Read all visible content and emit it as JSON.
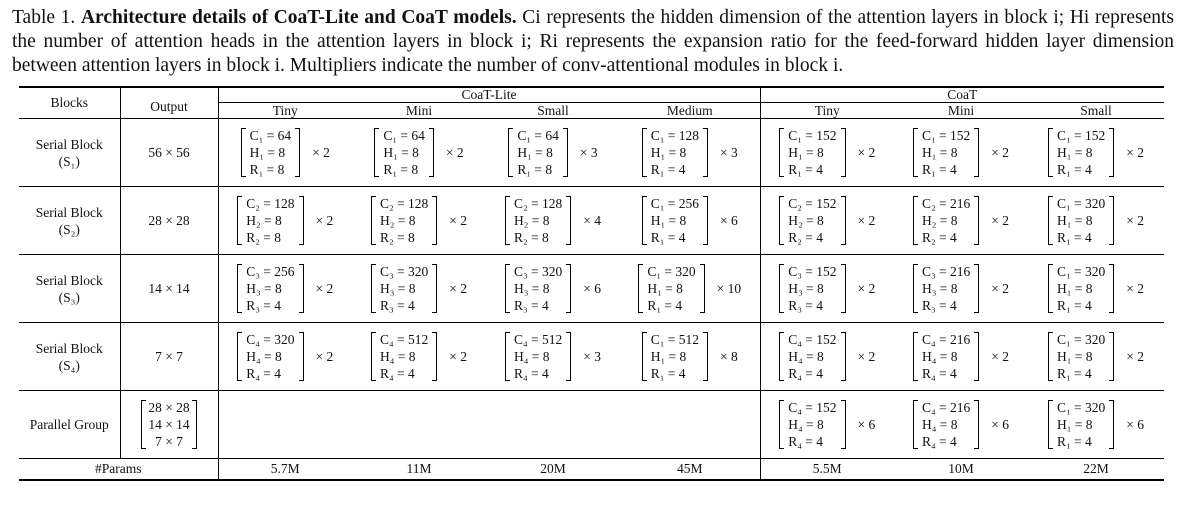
{
  "caption": {
    "label": "Table 1.",
    "bold": "Architecture details of CoaT-Lite and CoaT models.",
    "text": "Ci represents the hidden dimension of the attention layers in block i; Hi represents the number of attention heads in the attention layers in block i; Ri represents the expansion ratio for the feed-forward hidden layer dimension between attention layers in block i. Multipliers indicate the number of conv-attentional modules in block i."
  },
  "headers": {
    "blocks": "Blocks",
    "output": "Output",
    "group_lite": "CoaT-Lite",
    "group_coat": "CoaT",
    "variants": [
      "Tiny",
      "Mini",
      "Small",
      "Medium",
      "Tiny",
      "Mini",
      "Small"
    ]
  },
  "rows": [
    {
      "name": "Serial Block",
      "sub": "(S₁)",
      "output": "56 × 56",
      "cells": [
        {
          "c": "C₁ = 64",
          "h": "H₁ = 8",
          "r": "R₁ = 8",
          "m": "× 2"
        },
        {
          "c": "C₁ = 64",
          "h": "H₁ = 8",
          "r": "R₁ = 8",
          "m": "× 2"
        },
        {
          "c": "C₁ = 64",
          "h": "H₁ = 8",
          "r": "R₁ = 8",
          "m": "× 3"
        },
        {
          "c": "C₁ = 128",
          "h": "H₁ = 8",
          "r": "R₁ = 4",
          "m": "× 3"
        },
        {
          "c": "C₁ = 152",
          "h": "H₁ = 8",
          "r": "R₁ = 4",
          "m": "× 2"
        },
        {
          "c": "C₁ = 152",
          "h": "H₁ = 8",
          "r": "R₁ = 4",
          "m": "× 2"
        },
        {
          "c": "C₁ = 152",
          "h": "H₁ = 8",
          "r": "R₁ = 4",
          "m": "× 2"
        }
      ]
    },
    {
      "name": "Serial Block",
      "sub": "(S₂)",
      "output": "28 × 28",
      "cells": [
        {
          "c": "C₂ = 128",
          "h": "H₂ = 8",
          "r": "R₂ = 8",
          "m": "× 2"
        },
        {
          "c": "C₂ = 128",
          "h": "H₂ = 8",
          "r": "R₂ = 8",
          "m": "× 2"
        },
        {
          "c": "C₂ = 128",
          "h": "H₂ = 8",
          "r": "R₂ = 8",
          "m": "× 4"
        },
        {
          "c": "C₁ = 256",
          "h": "H₁ = 8",
          "r": "R₁ = 4",
          "m": "× 6"
        },
        {
          "c": "C₂ = 152",
          "h": "H₂ = 8",
          "r": "R₂ = 4",
          "m": "× 2"
        },
        {
          "c": "C₂ = 216",
          "h": "H₂ = 8",
          "r": "R₂ = 4",
          "m": "× 2"
        },
        {
          "c": "C₁ = 320",
          "h": "H₁ = 8",
          "r": "R₁ = 4",
          "m": "× 2"
        }
      ]
    },
    {
      "name": "Serial Block",
      "sub": "(S₃)",
      "output": "14 × 14",
      "cells": [
        {
          "c": "C₃ = 256",
          "h": "H₃ = 8",
          "r": "R₃ = 4",
          "m": "× 2"
        },
        {
          "c": "C₃ = 320",
          "h": "H₃ = 8",
          "r": "R₃ = 4",
          "m": "× 2"
        },
        {
          "c": "C₃ = 320",
          "h": "H₃ = 8",
          "r": "R₃ = 4",
          "m": "× 6"
        },
        {
          "c": "C₁ = 320",
          "h": "H₁ = 8",
          "r": "R₁ = 4",
          "m": "× 10"
        },
        {
          "c": "C₃ = 152",
          "h": "H₃ = 8",
          "r": "R₃ = 4",
          "m": "× 2"
        },
        {
          "c": "C₃ = 216",
          "h": "H₃ = 8",
          "r": "R₃ = 4",
          "m": "× 2"
        },
        {
          "c": "C₁ = 320",
          "h": "H₁ = 8",
          "r": "R₁ = 4",
          "m": "× 2"
        }
      ]
    },
    {
      "name": "Serial Block",
      "sub": "(S₄)",
      "output": "7 × 7",
      "cells": [
        {
          "c": "C₄ = 320",
          "h": "H₄ = 8",
          "r": "R₄ = 4",
          "m": "× 2"
        },
        {
          "c": "C₄ = 512",
          "h": "H₄ = 8",
          "r": "R₄ = 4",
          "m": "× 2"
        },
        {
          "c": "C₄ = 512",
          "h": "H₄ = 8",
          "r": "R₄ = 4",
          "m": "× 3"
        },
        {
          "c": "C₁ = 512",
          "h": "H₁ = 8",
          "r": "R₁ = 4",
          "m": "× 8"
        },
        {
          "c": "C₄ = 152",
          "h": "H₄ = 8",
          "r": "R₄ = 4",
          "m": "× 2"
        },
        {
          "c": "C₄ = 216",
          "h": "H₄ = 8",
          "r": "R₄ = 4",
          "m": "× 2"
        },
        {
          "c": "C₁ = 320",
          "h": "H₁ = 8",
          "r": "R₁ = 4",
          "m": "× 2"
        }
      ]
    }
  ],
  "parallel": {
    "name": "Parallel Group",
    "outputs": [
      "28 × 28",
      "14 × 14",
      "7 × 7"
    ],
    "cells": [
      null,
      null,
      null,
      null,
      {
        "c": "C₄ = 152",
        "h": "H₄ = 8",
        "r": "R₄ = 4",
        "m": "× 6"
      },
      {
        "c": "C₄ = 216",
        "h": "H₄ = 8",
        "r": "R₄ = 4",
        "m": "× 6"
      },
      {
        "c": "C₁ = 320",
        "h": "H₁ = 8",
        "r": "R₁ = 4",
        "m": "× 6"
      }
    ]
  },
  "params": {
    "label": "#Params",
    "values": [
      "5.7M",
      "11M",
      "20M",
      "45M",
      "5.5M",
      "10M",
      "22M"
    ]
  }
}
